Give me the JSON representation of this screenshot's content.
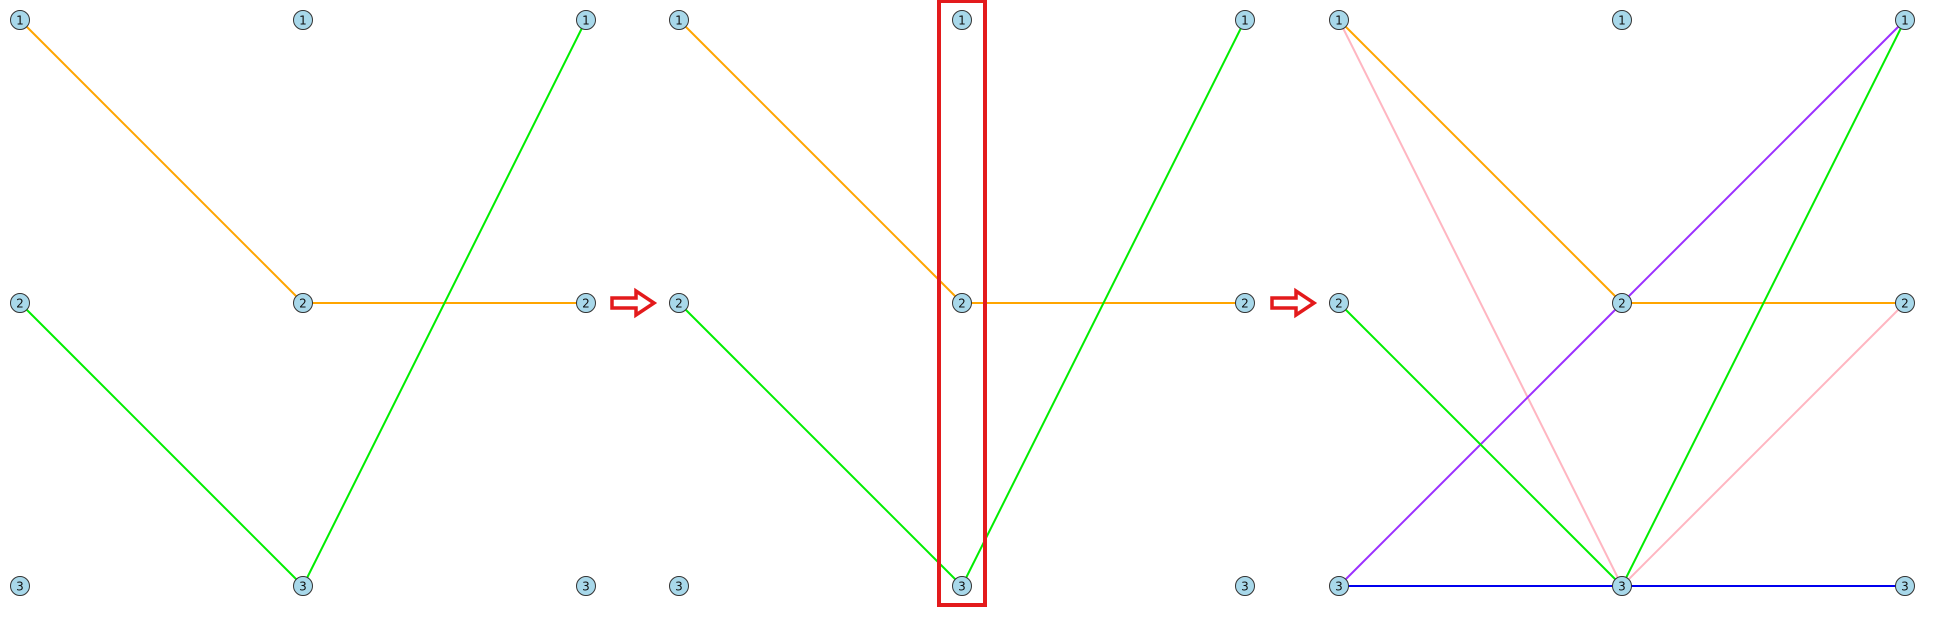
{
  "colors": {
    "node_fill": "#a8d8ea",
    "node_stroke": "#333333",
    "highlight": "#e31a1c",
    "arrow": "#e31a1c"
  },
  "panels": [
    {
      "name": "panel-1",
      "columns": [
        [
          "1",
          "2",
          "3"
        ],
        [
          "1",
          "2",
          "3"
        ],
        [
          "1",
          "2",
          "3"
        ]
      ],
      "edges": [
        {
          "from": [
            0,
            0
          ],
          "to": [
            1,
            1
          ],
          "color": "#ffa500"
        },
        {
          "from": [
            1,
            1
          ],
          "to": [
            2,
            1
          ],
          "color": "#ffa500"
        },
        {
          "from": [
            0,
            1
          ],
          "to": [
            1,
            2
          ],
          "color": "#00ee00"
        },
        {
          "from": [
            1,
            2
          ],
          "to": [
            2,
            0
          ],
          "color": "#00ee00"
        }
      ]
    },
    {
      "name": "panel-2",
      "highlight_column": 1,
      "columns": [
        [
          "1",
          "2",
          "3"
        ],
        [
          "1",
          "2",
          "3"
        ],
        [
          "1",
          "2",
          "3"
        ]
      ],
      "edges": [
        {
          "from": [
            0,
            0
          ],
          "to": [
            1,
            1
          ],
          "color": "#ffa500"
        },
        {
          "from": [
            1,
            1
          ],
          "to": [
            2,
            1
          ],
          "color": "#ffa500"
        },
        {
          "from": [
            0,
            1
          ],
          "to": [
            1,
            2
          ],
          "color": "#00ee00"
        },
        {
          "from": [
            1,
            2
          ],
          "to": [
            2,
            0
          ],
          "color": "#00ee00"
        }
      ]
    },
    {
      "name": "panel-3",
      "columns": [
        [
          "1",
          "2",
          "3"
        ],
        [
          "1",
          "2",
          "3"
        ],
        [
          "1",
          "2",
          "3"
        ]
      ],
      "edges": [
        {
          "from": [
            0,
            0
          ],
          "to": [
            1,
            2
          ],
          "color": "#ffb6c1"
        },
        {
          "from": [
            1,
            2
          ],
          "to": [
            2,
            1
          ],
          "color": "#ffb6c1"
        },
        {
          "from": [
            0,
            0
          ],
          "to": [
            1,
            1
          ],
          "color": "#ffa500"
        },
        {
          "from": [
            1,
            1
          ],
          "to": [
            2,
            1
          ],
          "color": "#ffa500"
        },
        {
          "from": [
            0,
            2
          ],
          "to": [
            1,
            1
          ],
          "color": "#9b30ff"
        },
        {
          "from": [
            1,
            1
          ],
          "to": [
            2,
            0
          ],
          "color": "#9b30ff"
        },
        {
          "from": [
            0,
            1
          ],
          "to": [
            1,
            2
          ],
          "color": "#00ee00"
        },
        {
          "from": [
            1,
            2
          ],
          "to": [
            2,
            0
          ],
          "color": "#00ee00"
        },
        {
          "from": [
            0,
            2
          ],
          "to": [
            1,
            2
          ],
          "color": "#0000ee"
        },
        {
          "from": [
            1,
            2
          ],
          "to": [
            2,
            2
          ],
          "color": "#0000ee"
        }
      ]
    }
  ],
  "arrows": [
    {
      "name": "arrow-1"
    },
    {
      "name": "arrow-2"
    }
  ]
}
